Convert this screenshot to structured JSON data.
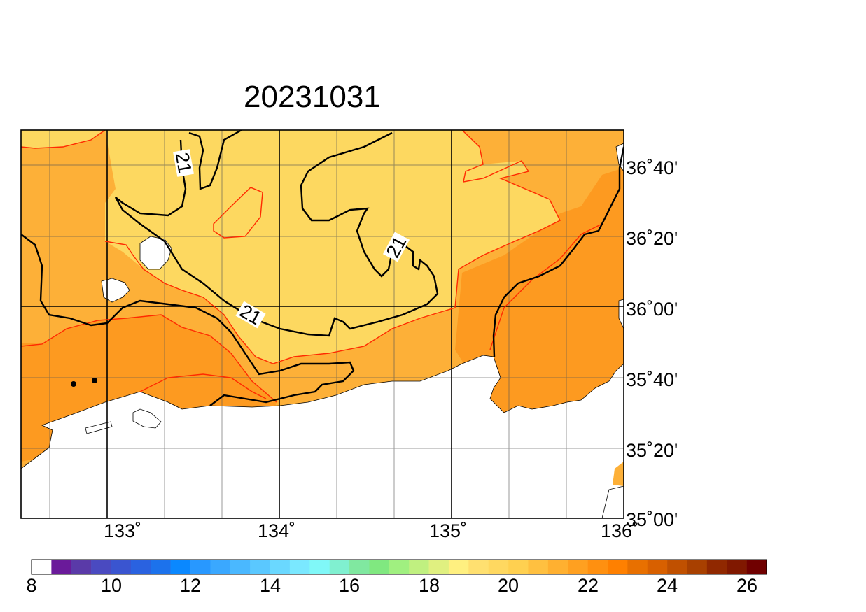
{
  "title": "20231031",
  "map": {
    "lon_labels": [
      "133˚",
      "134˚",
      "135˚",
      "136˚"
    ],
    "lat_labels": [
      "36˚40'",
      "36˚20'",
      "36˚00'",
      "35˚40'",
      "35˚20'",
      "35˚00'"
    ],
    "contour_labels": [
      "21",
      "21",
      "21"
    ]
  },
  "colorbar": {
    "tick_labels": [
      "8",
      "10",
      "12",
      "14",
      "16",
      "18",
      "20",
      "22",
      "24",
      "26"
    ],
    "colors": [
      "#ffffff",
      "#6a1a9a",
      "#5a3aa8",
      "#4a4ac0",
      "#3a55d0",
      "#2a62e0",
      "#1c72ec",
      "#0a88ff",
      "#2898ff",
      "#3aa8ff",
      "#4ab8ff",
      "#5ac8ff",
      "#6ad8ff",
      "#7ae8ff",
      "#80f8f8",
      "#80f0d0",
      "#80e8a0",
      "#80e880",
      "#a0f080",
      "#c0f080",
      "#e0f080",
      "#fff080",
      "#ffe070",
      "#ffd860",
      "#ffd050",
      "#ffc040",
      "#ffb030",
      "#ffa020",
      "#ff9010",
      "#ff8000",
      "#e87000",
      "#d86000",
      "#c05000",
      "#a84000",
      "#902800",
      "#801800",
      "#700000"
    ]
  },
  "style": {
    "fill_light": "#fdd860",
    "fill_mid": "#fdb038",
    "fill_dark": "#fd9a20",
    "contour_red": "#ff2a00",
    "contour_black": "#000000"
  }
}
